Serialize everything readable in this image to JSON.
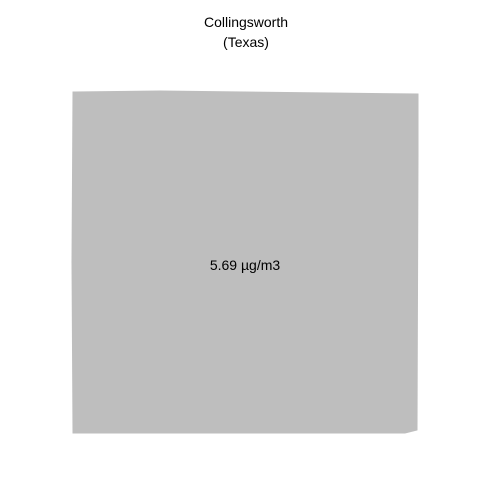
{
  "map": {
    "title": "Collingsworth",
    "subtitle": "(Texas)",
    "region": {
      "name": "Collingsworth",
      "value_label": "5.69 µg/m3",
      "fill_color": "#bebebe"
    }
  }
}
